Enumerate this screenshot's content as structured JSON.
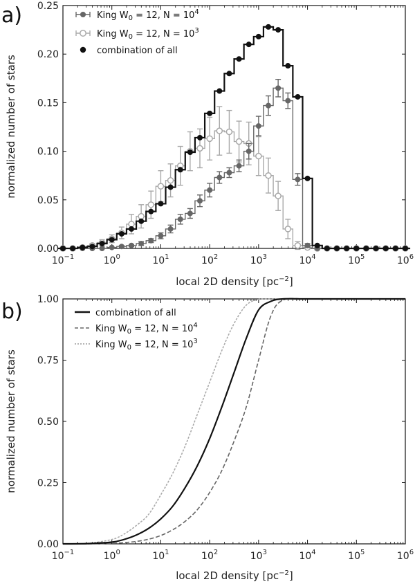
{
  "chart_data": [
    {
      "panel_label": "a)",
      "type": "histogram",
      "xscale": "log",
      "xlim": [
        0.1,
        1000000
      ],
      "ylim": [
        0,
        0.25
      ],
      "xlabel": "local 2D density [pc",
      "xlabel_sup": "−2",
      "xlabel_end": "]",
      "ylabel": "normalized number of stars",
      "x_ticks": [
        {
          "base": "10",
          "exp": "−1",
          "value": 0.1
        },
        {
          "base": "10",
          "exp": "0",
          "value": 1
        },
        {
          "base": "10",
          "exp": "1",
          "value": 10
        },
        {
          "base": "10",
          "exp": "2",
          "value": 100
        },
        {
          "base": "10",
          "exp": "3",
          "value": 1000
        },
        {
          "base": "10",
          "exp": "4",
          "value": 10000
        },
        {
          "base": "10",
          "exp": "5",
          "value": 100000
        },
        {
          "base": "10",
          "exp": "6",
          "value": 1000000
        }
      ],
      "y_ticks": [
        "0.00",
        "0.05",
        "0.10",
        "0.15",
        "0.20",
        "0.25"
      ],
      "y_tick_values": [
        0,
        0.05,
        0.1,
        0.15,
        0.2,
        0.25
      ],
      "legend": [
        {
          "label": "King W",
          "sub": "0",
          "rest": " = 12, N = 10",
          "sup": "4",
          "color": "#666666",
          "marker": "filled-errorbar"
        },
        {
          "label": "King W",
          "sub": "0",
          "rest": " = 12, N = 10",
          "sup": "3",
          "color": "#aaaaaa",
          "marker": "open-errorbar"
        },
        {
          "label": "combination of all",
          "sub": "",
          "rest": "",
          "sup": "",
          "color": "#111111",
          "marker": "filled"
        }
      ],
      "series": [
        {
          "name": "King W0 = 12, N = 10^4",
          "color": "#666666",
          "marker": "filled",
          "x_log10": [
            -1.0,
            -0.8,
            -0.6,
            -0.4,
            -0.2,
            0.0,
            0.2,
            0.4,
            0.6,
            0.8,
            1.0,
            1.2,
            1.4,
            1.6,
            1.8,
            2.0,
            2.2,
            2.4,
            2.6,
            2.8,
            3.0,
            3.2,
            3.4,
            3.6,
            3.8,
            4.0,
            4.2,
            4.4,
            4.6,
            4.8,
            5.0,
            5.2,
            5.4,
            5.6,
            5.8,
            6.0
          ],
          "values": [
            0,
            0,
            0,
            0,
            0,
            0.001,
            0.002,
            0.003,
            0.005,
            0.008,
            0.013,
            0.02,
            0.03,
            0.036,
            0.049,
            0.06,
            0.073,
            0.078,
            0.085,
            0.1,
            0.126,
            0.147,
            0.165,
            0.152,
            0.071,
            0.003,
            0,
            0,
            0,
            0,
            0,
            0,
            0,
            0,
            0,
            0
          ],
          "errors": [
            0,
            0,
            0,
            0,
            0,
            0,
            0.001,
            0.001,
            0.002,
            0.002,
            0.003,
            0.004,
            0.005,
            0.005,
            0.006,
            0.007,
            0.006,
            0.005,
            0.006,
            0.008,
            0.01,
            0.01,
            0.009,
            0.008,
            0.006,
            0.002,
            0,
            0,
            0,
            0,
            0,
            0,
            0,
            0,
            0,
            0
          ]
        },
        {
          "name": "King W0 = 12, N = 10^3",
          "color": "#a8a8a8",
          "marker": "open",
          "x_log10": [
            -1.0,
            -0.8,
            -0.6,
            -0.4,
            -0.2,
            0.0,
            0.2,
            0.4,
            0.6,
            0.8,
            1.0,
            1.2,
            1.4,
            1.6,
            1.8,
            2.0,
            2.2,
            2.4,
            2.6,
            2.8,
            3.0,
            3.2,
            3.4,
            3.6,
            3.8,
            4.0,
            4.2,
            4.4,
            4.6,
            4.8,
            5.0,
            5.2,
            5.4,
            5.6,
            5.8,
            6.0
          ],
          "values": [
            0,
            0,
            0.001,
            0.003,
            0.006,
            0.01,
            0.016,
            0.025,
            0.033,
            0.045,
            0.064,
            0.07,
            0.085,
            0.1,
            0.103,
            0.113,
            0.121,
            0.12,
            0.11,
            0.108,
            0.095,
            0.075,
            0.054,
            0.02,
            0.003,
            0.001,
            0,
            0,
            0,
            0,
            0,
            0,
            0,
            0,
            0,
            0
          ],
          "errors": [
            0,
            0,
            0.001,
            0.002,
            0.003,
            0.004,
            0.006,
            0.01,
            0.012,
            0.014,
            0.016,
            0.017,
            0.02,
            0.02,
            0.02,
            0.022,
            0.025,
            0.022,
            0.021,
            0.022,
            0.02,
            0.018,
            0.015,
            0.01,
            0.004,
            0.001,
            0,
            0,
            0,
            0,
            0,
            0,
            0,
            0,
            0,
            0
          ]
        },
        {
          "name": "combination of all",
          "color": "#111111",
          "marker": "filled",
          "x_log10": [
            -1.0,
            -0.8,
            -0.6,
            -0.4,
            -0.2,
            0.0,
            0.2,
            0.4,
            0.6,
            0.8,
            1.0,
            1.2,
            1.4,
            1.6,
            1.8,
            2.0,
            2.2,
            2.4,
            2.6,
            2.8,
            3.0,
            3.2,
            3.4,
            3.6,
            3.8,
            4.0,
            4.2,
            4.4,
            4.6,
            4.8,
            5.0,
            5.2,
            5.4,
            5.6,
            5.8,
            6.0
          ],
          "values": [
            0,
            0,
            0.001,
            0.002,
            0.005,
            0.009,
            0.015,
            0.02,
            0.028,
            0.038,
            0.046,
            0.063,
            0.081,
            0.099,
            0.114,
            0.139,
            0.162,
            0.18,
            0.195,
            0.21,
            0.218,
            0.228,
            0.225,
            0.188,
            0.156,
            0.072,
            0.003,
            0,
            0,
            0,
            0,
            0,
            0,
            0,
            0,
            0
          ],
          "errors": []
        }
      ]
    },
    {
      "panel_label": "b)",
      "type": "line",
      "xscale": "log",
      "xlim": [
        0.1,
        1000000
      ],
      "ylim": [
        0,
        1.0
      ],
      "xlabel": "local 2D density [pc",
      "xlabel_sup": "−2",
      "xlabel_end": "]",
      "ylabel": "normalized number of stars",
      "x_ticks": [
        {
          "base": "10",
          "exp": "−1",
          "value": 0.1
        },
        {
          "base": "10",
          "exp": "0",
          "value": 1
        },
        {
          "base": "10",
          "exp": "1",
          "value": 10
        },
        {
          "base": "10",
          "exp": "2",
          "value": 100
        },
        {
          "base": "10",
          "exp": "3",
          "value": 1000
        },
        {
          "base": "10",
          "exp": "4",
          "value": 10000
        },
        {
          "base": "10",
          "exp": "5",
          "value": 100000
        },
        {
          "base": "10",
          "exp": "6",
          "value": 1000000
        }
      ],
      "y_ticks": [
        "0.00",
        "0.25",
        "0.50",
        "0.75",
        "1.00"
      ],
      "y_tick_values": [
        0,
        0.25,
        0.5,
        0.75,
        1.0
      ],
      "legend": [
        {
          "label": "combination of all",
          "sub": "",
          "rest": "",
          "sup": "",
          "color": "#111111",
          "dash": "solid"
        },
        {
          "label": "King W",
          "sub": "0",
          "rest": " = 12, N = 10",
          "sup": "4",
          "color": "#666666",
          "dash": "dashed"
        },
        {
          "label": "King W",
          "sub": "0",
          "rest": " = 12, N = 10",
          "sup": "3",
          "color": "#aaaaaa",
          "dash": "dotted"
        }
      ],
      "series": [
        {
          "name": "combination of all",
          "color": "#111111",
          "dash": "solid",
          "x_log10": [
            -1.0,
            -0.5,
            0.0,
            0.25,
            0.5,
            0.75,
            1.0,
            1.25,
            1.5,
            1.75,
            2.0,
            2.25,
            2.5,
            2.75,
            3.0,
            3.25,
            3.5,
            4.0,
            5.0,
            6.0
          ],
          "y": [
            0,
            0.001,
            0.007,
            0.018,
            0.036,
            0.063,
            0.102,
            0.155,
            0.23,
            0.32,
            0.43,
            0.56,
            0.7,
            0.84,
            0.955,
            0.99,
            1.0,
            1.0,
            1.0,
            1.0
          ]
        },
        {
          "name": "King W0 = 12, N = 10^4",
          "color": "#666666",
          "dash": "dashed",
          "x_log10": [
            -1.0,
            -0.5,
            0.0,
            0.25,
            0.5,
            0.75,
            1.0,
            1.25,
            1.5,
            1.75,
            2.0,
            2.25,
            2.5,
            2.75,
            3.0,
            3.25,
            3.5,
            4.0,
            5.0,
            6.0
          ],
          "y": [
            0,
            0.0,
            0.002,
            0.005,
            0.01,
            0.019,
            0.034,
            0.058,
            0.092,
            0.14,
            0.21,
            0.3,
            0.42,
            0.56,
            0.75,
            0.93,
            0.995,
            1.0,
            1.0,
            1.0
          ]
        },
        {
          "name": "King W0 = 12, N = 10^3",
          "color": "#aaaaaa",
          "dash": "dotted",
          "x_log10": [
            -1.0,
            -0.5,
            0.0,
            0.25,
            0.5,
            0.75,
            1.0,
            1.25,
            1.5,
            1.75,
            2.0,
            2.25,
            2.5,
            2.75,
            3.0,
            3.25,
            3.5,
            4.0,
            5.0,
            6.0
          ],
          "y": [
            0,
            0.002,
            0.018,
            0.04,
            0.075,
            0.12,
            0.2,
            0.29,
            0.4,
            0.53,
            0.66,
            0.79,
            0.9,
            0.975,
            0.998,
            1.0,
            1.0,
            1.0,
            1.0,
            1.0
          ]
        }
      ]
    }
  ]
}
